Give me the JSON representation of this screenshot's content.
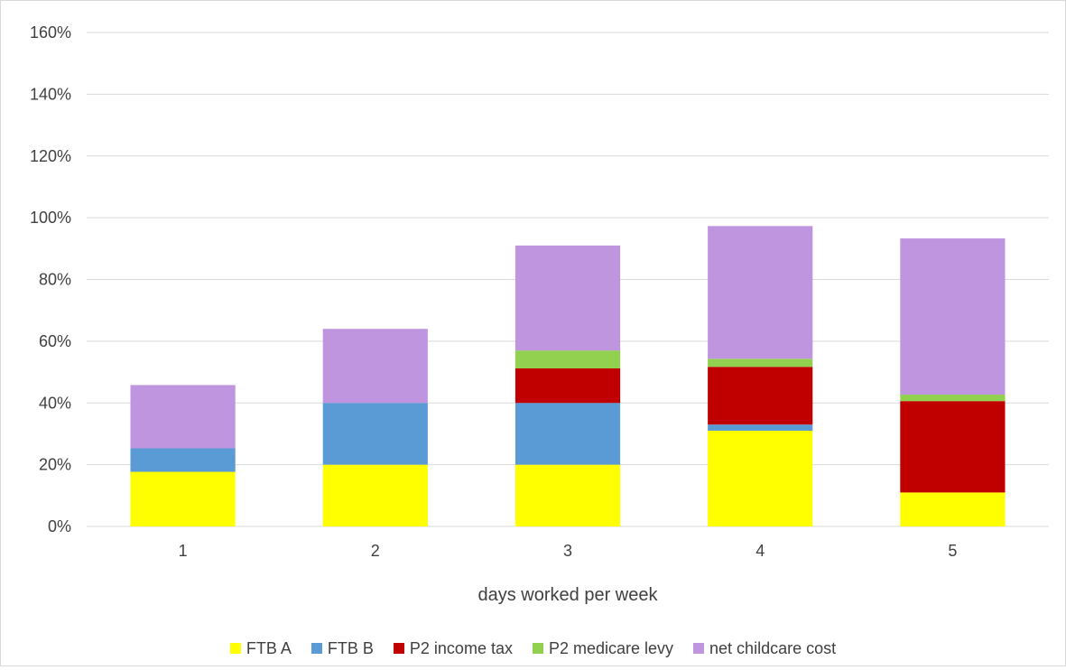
{
  "chart_data": {
    "type": "bar",
    "stacked": true,
    "title": "",
    "xlabel": "days worked per week",
    "ylabel": "",
    "categories": [
      "1",
      "2",
      "3",
      "4",
      "5"
    ],
    "ylim": [
      0,
      160
    ],
    "yticks": [
      0,
      20,
      40,
      60,
      80,
      100,
      120,
      140,
      160
    ],
    "ytick_labels": [
      "0%",
      "20%",
      "40%",
      "60%",
      "80%",
      "100%",
      "120%",
      "140%",
      "160%"
    ],
    "y_unit": "%",
    "grid": true,
    "legend_position": "bottom",
    "series": [
      {
        "name": "FTB A",
        "color": "#ffff00",
        "values": [
          17.7,
          20,
          20,
          31,
          11
        ]
      },
      {
        "name": "FTB B",
        "color": "#5b9bd5",
        "values": [
          7.6,
          20,
          20,
          2,
          0
        ]
      },
      {
        "name": "P2 income tax",
        "color": "#c00000",
        "values": [
          0,
          0,
          11.2,
          18.7,
          29.6
        ]
      },
      {
        "name": "P2 medicare levy",
        "color": "#92d050",
        "values": [
          0,
          0,
          5.8,
          2.6,
          2.1
        ]
      },
      {
        "name": "net childcare cost",
        "color": "#c095e0",
        "values": [
          20.5,
          24,
          34,
          43,
          50.6
        ]
      }
    ]
  }
}
